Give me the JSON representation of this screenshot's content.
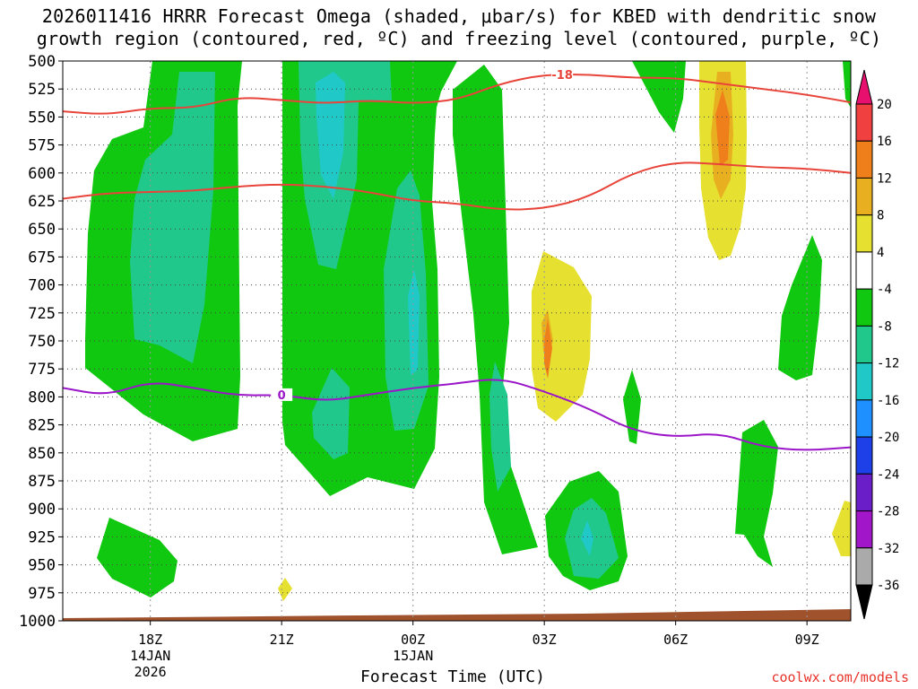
{
  "title": {
    "line1": "2026011416 HRRR Forecast Omega (shaded, μbar/s) for KBED with dendritic snow",
    "line2": "growth region (contoured, red, ºC) and freezing level (contoured, purple, ºC)"
  },
  "credit": "coolwx.com/models",
  "chart_data": {
    "type": "time-height contour",
    "xlabel": "Forecast Time (UTC)",
    "ylabel": "",
    "y_ticks": [
      "500",
      "525",
      "550",
      "575",
      "600",
      "625",
      "650",
      "675",
      "700",
      "725",
      "750",
      "775",
      "800",
      "825",
      "850",
      "875",
      "900",
      "925",
      "950",
      "975",
      "1000"
    ],
    "x_ticks": [
      {
        "hour": 2,
        "label": "18Z",
        "sub1": "14JAN",
        "sub2": "2026"
      },
      {
        "hour": 5,
        "label": "21Z",
        "sub1": "",
        "sub2": ""
      },
      {
        "hour": 8,
        "label": "00Z",
        "sub1": "15JAN",
        "sub2": ""
      },
      {
        "hour": 11,
        "label": "03Z",
        "sub1": "",
        "sub2": ""
      },
      {
        "hour": 14,
        "label": "06Z",
        "sub1": "",
        "sub2": ""
      },
      {
        "hour": 17,
        "label": "09Z",
        "sub1": "",
        "sub2": ""
      }
    ],
    "x_range_hours": [
      0,
      18
    ],
    "y_range_hpa": [
      500,
      1000
    ],
    "colorbar": {
      "labels": [
        "20",
        "16",
        "12",
        "8",
        "4",
        "-4",
        "-8",
        "-12",
        "-16",
        "-20",
        "-24",
        "-28",
        "-32",
        "-36"
      ],
      "colors": [
        "#e8106e",
        "#f04040",
        "#ef7f1a",
        "#e8b020",
        "#e6e030",
        "#ffffff",
        "#11c811",
        "#20c88c",
        "#20c8c8",
        "#1e90ff",
        "#1e40e8",
        "#6a1ec8",
        "#a016c8",
        "#aaaaaa",
        "#000000"
      ]
    },
    "series": [
      {
        "name": "-18",
        "color": "#e8443a",
        "points": [
          [
            0,
            545
          ],
          [
            1,
            548
          ],
          [
            2,
            542
          ],
          [
            3,
            542
          ],
          [
            4,
            532
          ],
          [
            5,
            535
          ],
          [
            6,
            538
          ],
          [
            7,
            535
          ],
          [
            8,
            538
          ],
          [
            9,
            535
          ],
          [
            10,
            520
          ],
          [
            11,
            512
          ],
          [
            12,
            512
          ],
          [
            13,
            515
          ],
          [
            14,
            515
          ],
          [
            15,
            520
          ],
          [
            16,
            525
          ],
          [
            17,
            530
          ],
          [
            18,
            537
          ]
        ]
      },
      {
        "name": "",
        "color": "#e8443a",
        "points": [
          [
            0,
            623
          ],
          [
            1,
            618
          ],
          [
            2,
            617
          ],
          [
            3,
            616
          ],
          [
            4,
            612
          ],
          [
            5,
            610
          ],
          [
            6,
            612
          ],
          [
            7,
            617
          ],
          [
            8,
            625
          ],
          [
            9,
            627
          ],
          [
            10,
            633
          ],
          [
            11,
            632
          ],
          [
            12,
            622
          ],
          [
            13,
            600
          ],
          [
            14,
            590
          ],
          [
            15,
            592
          ],
          [
            16,
            595
          ],
          [
            17,
            596
          ],
          [
            18,
            600
          ]
        ]
      },
      {
        "name": "0",
        "color": "#9b16c8",
        "points": [
          [
            0,
            792
          ],
          [
            1,
            799
          ],
          [
            2,
            786
          ],
          [
            3,
            792
          ],
          [
            4,
            799
          ],
          [
            5,
            798
          ],
          [
            6,
            804
          ],
          [
            7,
            798
          ],
          [
            8,
            792
          ],
          [
            9,
            788
          ],
          [
            10,
            783
          ],
          [
            11,
            795
          ],
          [
            12,
            810
          ],
          [
            13,
            830
          ],
          [
            14,
            836
          ],
          [
            15,
            832
          ],
          [
            16,
            845
          ],
          [
            17,
            848
          ],
          [
            18,
            845
          ]
        ]
      }
    ]
  }
}
